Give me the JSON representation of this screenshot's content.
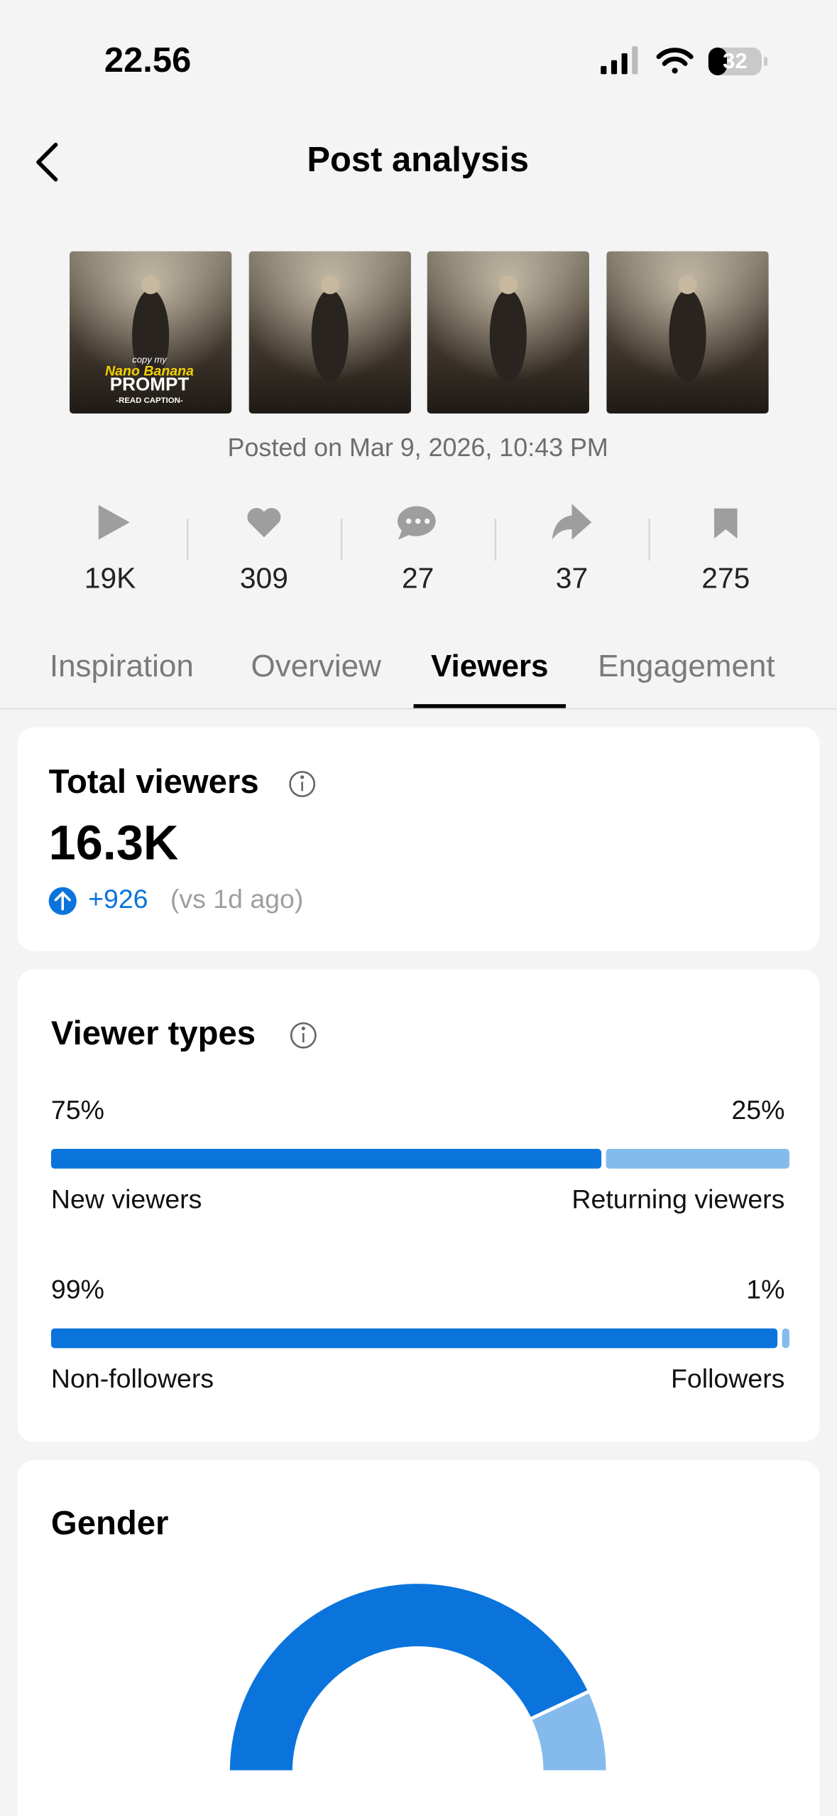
{
  "status_bar": {
    "time": "22.56",
    "battery": "32"
  },
  "header": {
    "title": "Post analysis"
  },
  "thumbnails": [
    {
      "caption": [
        "copy my",
        "Nano Banana",
        "PROMPT",
        "-READ CAPTION-"
      ]
    },
    {
      "caption": []
    },
    {
      "caption": []
    },
    {
      "caption": []
    }
  ],
  "posted": "Posted on Mar 9, 2026, 10:43 PM",
  "stats": [
    "19K",
    "309",
    "27",
    "37",
    "275"
  ],
  "tabs": {
    "items": [
      "Inspiration",
      "Overview",
      "Viewers",
      "Engagement"
    ],
    "active": 2
  },
  "total_viewers": {
    "title": "Total viewers",
    "value": "16.3K",
    "change": "+926",
    "comparison": "(vs 1d ago)"
  },
  "viewer_types": {
    "title": "Viewer types",
    "rows": [
      {
        "values": [
          75,
          25
        ],
        "value_labels": [
          "75%",
          "25%"
        ],
        "labels": [
          "New viewers",
          "Returning viewers"
        ]
      },
      {
        "values": [
          99,
          1
        ],
        "value_labels": [
          "99%",
          "1%"
        ],
        "labels": [
          "Non-followers",
          "Followers"
        ]
      }
    ],
    "colors": [
      "#0a74dc",
      "#85bbec"
    ]
  },
  "gender": {
    "title": "Gender",
    "values": [
      86,
      14
    ],
    "colors": [
      "#0a74dc",
      "#85bbec"
    ]
  }
}
